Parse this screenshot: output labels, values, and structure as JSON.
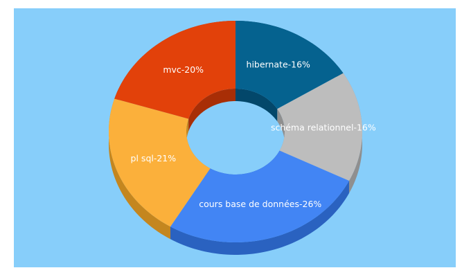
{
  "chart_data": {
    "type": "donut3d",
    "values": [
      16,
      16,
      26,
      21,
      20
    ],
    "value_labels": [
      "hibernate-16%",
      "schéma relationnel-16%",
      "cours base de données-26%",
      "pl sql-21%",
      "mvc-20%"
    ],
    "colors": [
      "#05628f",
      "#bdbdbd",
      "#4285f4",
      "#fbb03b",
      "#e2410a"
    ],
    "side_colors": [
      "#03476a",
      "#8f8f8f",
      "#2a62c0",
      "#c4861f",
      "#a82e06"
    ]
  }
}
